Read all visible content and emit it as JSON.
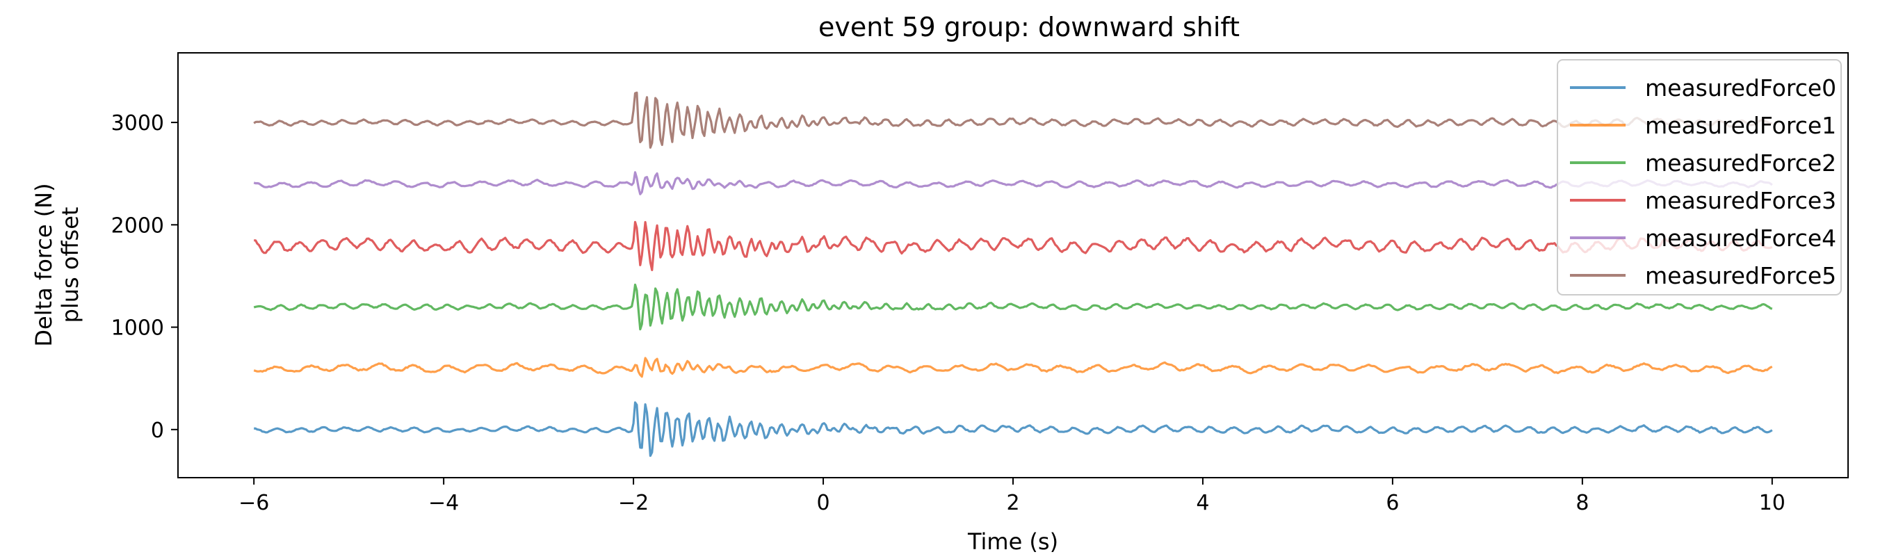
{
  "chart_data": {
    "type": "line",
    "title": "event 59 group: downward shift",
    "xlabel": "Time (s)",
    "ylabel": [
      "Delta force (N)",
      "plus offset"
    ],
    "xlim": [
      -6.8,
      10.8
    ],
    "ylim": [
      -470,
      3680
    ],
    "xticks": [
      -6,
      -4,
      -2,
      0,
      2,
      4,
      6,
      8,
      10
    ],
    "xtick_labels": [
      "−6",
      "−4",
      "−2",
      "0",
      "2",
      "4",
      "6",
      "8",
      "10"
    ],
    "yticks": [
      0,
      1000,
      2000,
      3000
    ],
    "ytick_labels": [
      "0",
      "1000",
      "2000",
      "3000"
    ],
    "x_range": [
      -6,
      10
    ],
    "event_time": -2,
    "grid": false,
    "legend_position": "top-right",
    "series": [
      {
        "name": "measuredForce0",
        "color": "#1f77b4",
        "offset": 0,
        "pre_amp": 18,
        "post_amp": 25,
        "burst_amp": 260,
        "decay": 0.9,
        "ripple_period": 0.24,
        "seed": 11
      },
      {
        "name": "measuredForce1",
        "color": "#ff7f0e",
        "offset": 600,
        "pre_amp": 28,
        "post_amp": 28,
        "burst_amp": 90,
        "decay": 0.6,
        "ripple_period": 0.36,
        "seed": 23
      },
      {
        "name": "measuredForce2",
        "color": "#2ca02c",
        "offset": 1200,
        "pre_amp": 20,
        "post_amp": 20,
        "burst_amp": 220,
        "decay": 1.0,
        "ripple_period": 0.22,
        "seed": 37
      },
      {
        "name": "measuredForce3",
        "color": "#d62728",
        "offset": 1800,
        "pre_amp": 45,
        "post_amp": 45,
        "burst_amp": 230,
        "decay": 0.9,
        "ripple_period": 0.24,
        "seed": 41
      },
      {
        "name": "measuredForce4",
        "color": "#9467bd",
        "offset": 2400,
        "pre_amp": 22,
        "post_amp": 22,
        "burst_amp": 110,
        "decay": 0.5,
        "ripple_period": 0.3,
        "seed": 53
      },
      {
        "name": "measuredForce5",
        "color": "#8c564b",
        "offset": 3000,
        "pre_amp": 18,
        "post_amp": 25,
        "burst_amp": 300,
        "decay": 0.8,
        "ripple_period": 0.22,
        "seed": 67
      }
    ]
  }
}
